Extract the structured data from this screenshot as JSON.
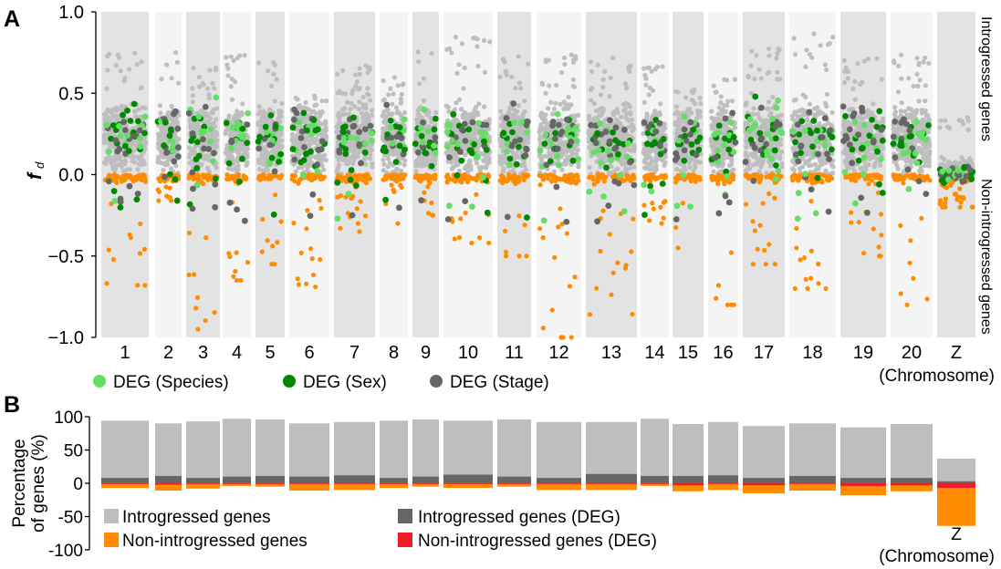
{
  "panel_a": {
    "label": "A",
    "ylabel": "f",
    "ylabel_sub": "d",
    "right_label_top": "Introgressed genes",
    "right_label_bottom": "Non-introgressed genes",
    "xlabel": "(Chromosome)",
    "legend": [
      {
        "label": "DEG (Species)",
        "color": "#66dd66"
      },
      {
        "label": "DEG (Sex)",
        "color": "#008800"
      },
      {
        "label": "DEG (Stage)",
        "color": "#666666"
      }
    ]
  },
  "panel_b": {
    "label": "B",
    "ylabel_line1": "Percentage",
    "ylabel_line2": "of genes (%)",
    "xlabel": "(Chromosome)",
    "z_label": "Z",
    "legend": [
      {
        "label": "Introgressed genes",
        "color": "#bebebe"
      },
      {
        "label": "Non-introgressed genes",
        "color": "#ff8c00"
      },
      {
        "label": "Introgressed genes (DEG)",
        "color": "#666666"
      },
      {
        "label": "Non-introgressed genes (DEG)",
        "color": "#ee1c25"
      }
    ]
  },
  "colors": {
    "introgressed": "#bebebe",
    "non_introgressed": "#ff8c00",
    "deg_species": "#66dd66",
    "deg_sex": "#008800",
    "deg_stage": "#666666",
    "deg_non_introgressed": "#ee1c25",
    "band_dark": "#e3e3e3",
    "band_light": "#f4f4f4"
  },
  "chart_data": [
    {
      "type": "scatter",
      "ylabel": "fd",
      "xlabel": "(Chromosome)",
      "ylim": [
        -1.0,
        1.0
      ],
      "yticks": [
        "1.0",
        "0.5",
        "0.0",
        "−0.5",
        "−1.0"
      ],
      "categories": [
        "1",
        "2",
        "3",
        "4",
        "5",
        "6",
        "7",
        "8",
        "9",
        "10",
        "11",
        "12",
        "13",
        "14",
        "15",
        "16",
        "17",
        "18",
        "19",
        "20",
        "Z"
      ],
      "fd_max_approx": [
        0.75,
        0.77,
        0.66,
        0.74,
        0.74,
        0.5,
        0.7,
        0.6,
        0.78,
        0.85,
        0.75,
        0.77,
        0.72,
        0.67,
        0.55,
        0.6,
        0.83,
        0.87,
        0.72,
        0.74,
        0.36
      ],
      "fd_min_approx": [
        -0.68,
        -0.16,
        -0.95,
        -0.65,
        -0.55,
        -0.69,
        -0.35,
        -0.3,
        -0.25,
        -0.42,
        -0.5,
        -1.0,
        -0.88,
        -0.3,
        -0.48,
        -0.8,
        -0.55,
        -0.7,
        -0.5,
        -0.8,
        -0.2
      ],
      "grid": false
    },
    {
      "type": "bar",
      "stacked": true,
      "ylabel": "Percentage of genes (%)",
      "xlabel": "(Chromosome)",
      "ylim": [
        -100,
        100
      ],
      "yticks": [
        "100",
        "50",
        "0",
        "-50",
        "-100"
      ],
      "categories": [
        "1",
        "2",
        "3",
        "4",
        "5",
        "6",
        "7",
        "8",
        "9",
        "10",
        "11",
        "12",
        "13",
        "14",
        "15",
        "16",
        "17",
        "18",
        "19",
        "20",
        "Z"
      ],
      "series": [
        {
          "name": "Introgressed genes",
          "values": [
            94,
            90,
            93,
            97,
            96,
            90,
            92,
            94,
            96,
            94,
            96,
            92,
            92,
            97,
            89,
            92,
            86,
            90,
            84,
            89,
            37
          ]
        },
        {
          "name": "Introgressed genes (DEG)",
          "values": [
            8,
            11,
            8,
            10,
            11,
            10,
            12,
            8,
            10,
            13,
            10,
            8,
            14,
            11,
            11,
            12,
            8,
            11,
            8,
            8,
            3
          ]
        },
        {
          "name": "Non-introgressed genes",
          "values": [
            -7,
            -11,
            -8,
            -4,
            -5,
            -11,
            -10,
            -7,
            -5,
            -7,
            -5,
            -10,
            -10,
            -4,
            -12,
            -10,
            -15,
            -11,
            -18,
            -12,
            -64
          ]
        },
        {
          "name": "Non-introgressed genes (DEG)",
          "values": [
            -1,
            -2,
            -1,
            -1,
            -1,
            -1,
            -1,
            -1,
            -1,
            -1,
            -1,
            -1,
            -1,
            -1,
            -3,
            -1,
            -3,
            -1,
            -4,
            -3,
            -7
          ]
        }
      ]
    }
  ]
}
